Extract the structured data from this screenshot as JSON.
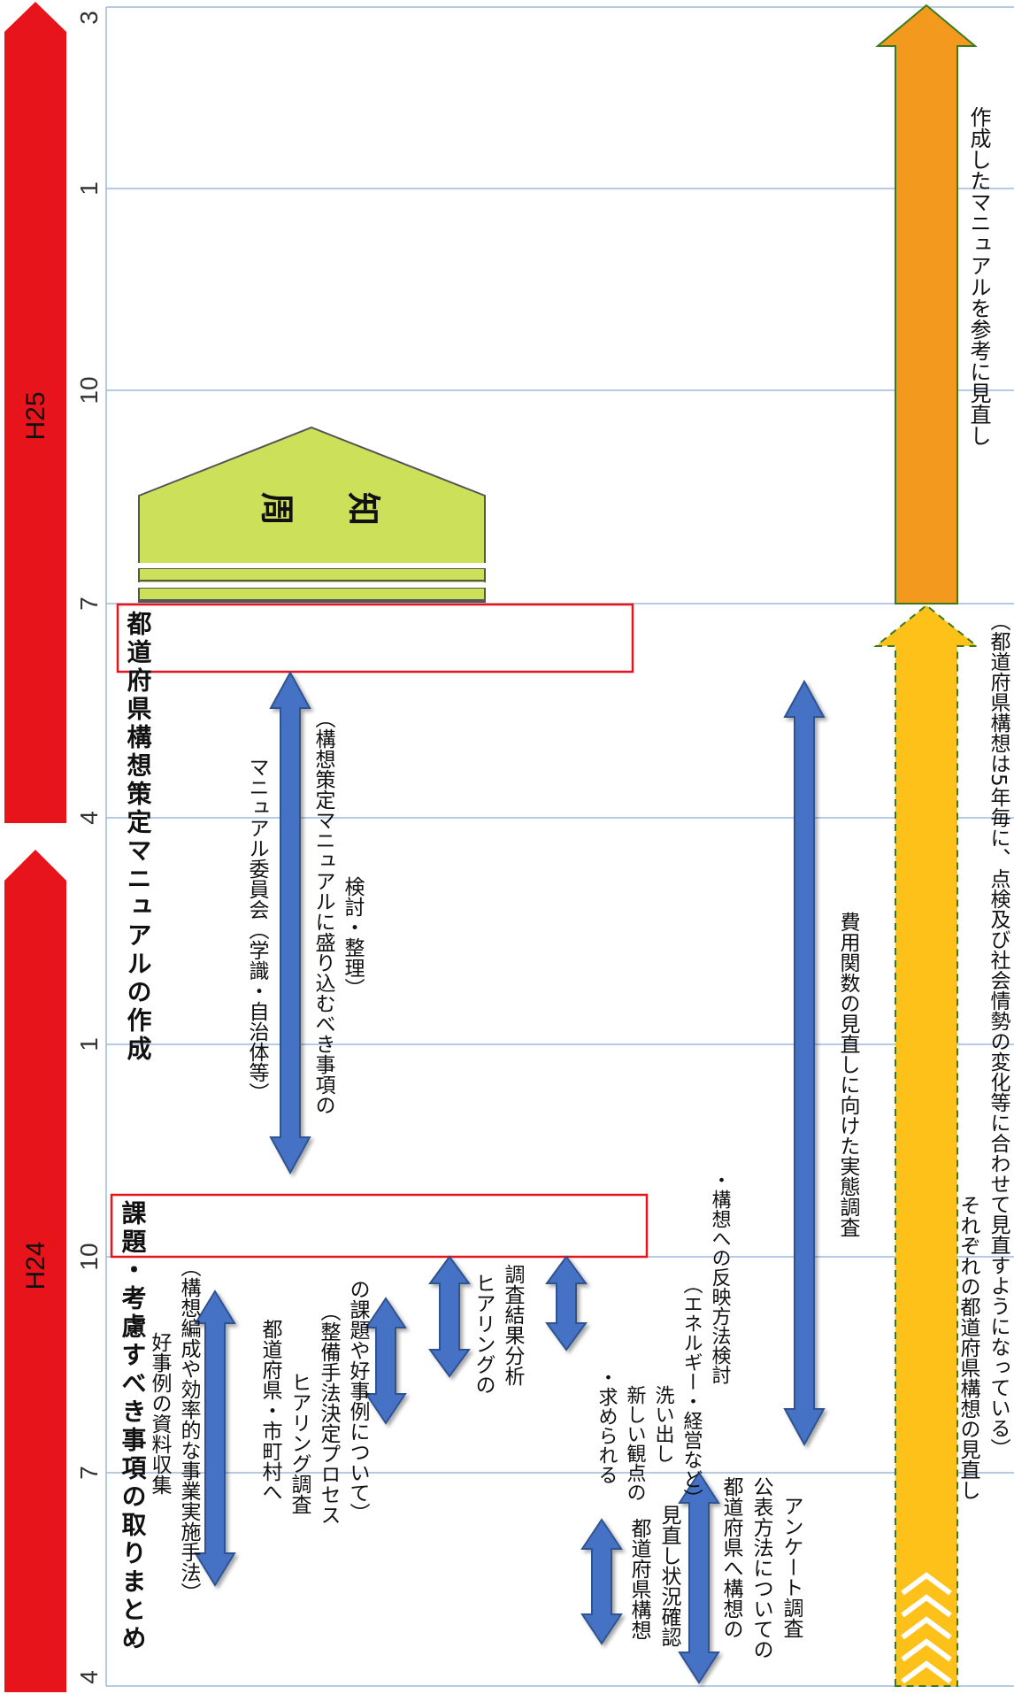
{
  "axis": {
    "ticks": [
      "3",
      "1",
      "10",
      "7",
      "4",
      "1",
      "10",
      "7",
      "4"
    ]
  },
  "years": {
    "h25": "H25",
    "h24": "H24"
  },
  "boxes": {
    "manual_creation": "都道府県構想策定マニュアルの作成",
    "issues_summary": "課題・考慮すべき事項の取りまとめ"
  },
  "notice": {
    "char1": "周",
    "char2": "知"
  },
  "labels": {
    "review_with_manual": "作成したマニュアルを参考に見直し",
    "cost_survey": "費用関数の見直しに向けた実態調査",
    "committee_line1": "マニュアル委員会（学識・自治体等）",
    "committee_line2": "（構想策定マニュアルに盛り込むべき事項の",
    "committee_line3": "検討・整理）",
    "new_view_1": "・求められる",
    "new_view_2": "新しい観点の",
    "new_view_3": "洗い出し",
    "new_view_4": "（エネルギー・経営など）",
    "new_view_5": "・構想への反映方法検討",
    "hearing_analysis_1": "ヒアリングの",
    "hearing_analysis_2": "調査結果分析",
    "hearing_1": "都道府県・市町村へ",
    "hearing_2": "ヒアリング調査",
    "hearing_3": "（整備手法決定プロセス",
    "hearing_4": "の課題や好事例について）",
    "good_case_1": "好事例の資料収集",
    "good_case_2": "（構想編成や効率的な事業実施手法）",
    "pref_review_1": "都道府県構想",
    "pref_review_2": "見直し状況確認",
    "survey_1": "都道府県へ構想の",
    "survey_2": "公表方法についての",
    "survey_3": "アンケート調査",
    "each_review_1": "それぞれの都道府県構想の見直し",
    "each_review_2": "（都道府県構想は5年毎に、点検及び社会情勢の変化等に合わせて見直すようになっている）"
  },
  "colors": {
    "year_bar": "#e8141b",
    "blue_arrow": "#4472c4",
    "blue_arrow_stroke": "#2f528f",
    "orange_arrow": "#f39a1e",
    "yellow_arrow": "#fdc11a",
    "notice_fill": "#cce05a",
    "box_border": "#e8141b",
    "grid": "#9db8dd"
  }
}
